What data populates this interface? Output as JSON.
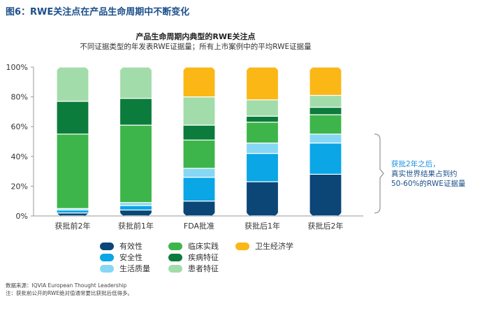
{
  "figure_title": "图6：RWE关注点在产品生命周期中不断变化",
  "source": "数据来源：IQVIA European Thought Leadership",
  "note": "注：获批前公开的RWE绝对值通常要比获批后低得多。",
  "annotation": {
    "line1": "获批2年之后，",
    "line2": "真实世界结果占到约",
    "line3": "50-60%的RWE证据量"
  },
  "chart_data": {
    "type": "bar",
    "stacked": true,
    "title": "产品生命周期内典型的RWE关注点",
    "subtitle": "不同证据类型的年发表RWE证据量；所有上市案例中的平均RWE证据量",
    "categories": [
      "获批前2年",
      "获批前1年",
      "FDA批准",
      "获批后1年",
      "获批后2年"
    ],
    "ylim": [
      0,
      100
    ],
    "yticks": [
      "0%",
      "20%",
      "40%",
      "60%",
      "80%",
      "100%"
    ],
    "legend_position": "bottom",
    "series": [
      {
        "name": "有效性",
        "color": "#0b4677",
        "values": [
          2,
          4,
          10,
          23,
          28
        ]
      },
      {
        "name": "安全性",
        "color": "#0aa6e6",
        "values": [
          2,
          3,
          16,
          19,
          21
        ]
      },
      {
        "name": "生活质量",
        "color": "#86d7f3",
        "values": [
          1,
          2,
          6,
          7,
          6
        ]
      },
      {
        "name": "临床实践",
        "color": "#3db54a",
        "values": [
          50,
          52,
          19,
          14,
          13
        ]
      },
      {
        "name": "疾病特征",
        "color": "#0c7c3c",
        "values": [
          22,
          18,
          10,
          4,
          5
        ]
      },
      {
        "name": "患者特征",
        "color": "#a2dcaa",
        "values": [
          23,
          21,
          19,
          11,
          8
        ]
      },
      {
        "name": "卫生经济学",
        "color": "#fbb716",
        "values": [
          0,
          0,
          20,
          22,
          19
        ]
      }
    ]
  }
}
